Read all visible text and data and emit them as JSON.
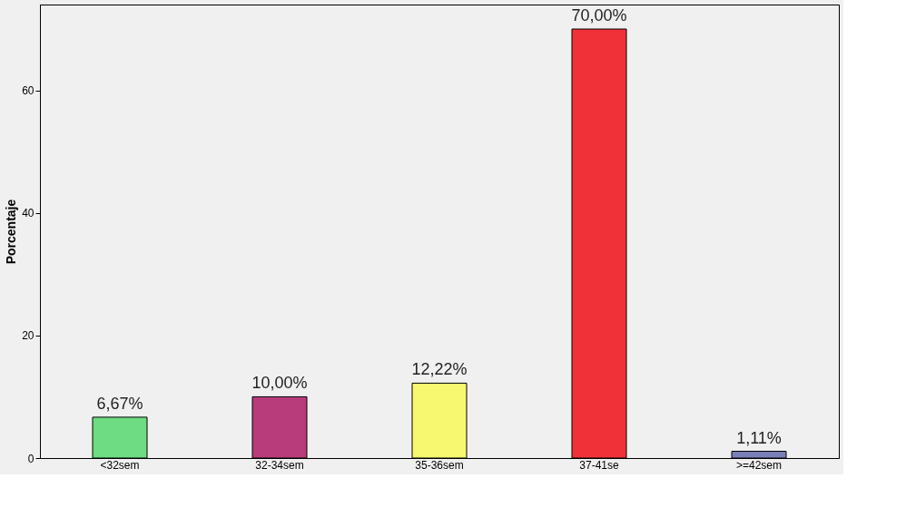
{
  "chart_data": {
    "type": "bar",
    "ylabel": "Porcentaje",
    "categories": [
      "<32sem",
      "32-34sem",
      "35-36sem",
      "37-41se",
      ">=42sem"
    ],
    "values": [
      6.67,
      10.0,
      12.22,
      70.0,
      1.11
    ],
    "colors": [
      "#6ddc82",
      "#b83c7c",
      "#f8f870",
      "#f03238",
      "#7b7fb8"
    ],
    "value_labels": [
      "6,67%",
      "10,00%",
      "12,22%",
      "70,00%",
      "1,11%"
    ],
    "ylim": [
      0,
      74
    ],
    "yticks": [
      0,
      20,
      40,
      60
    ],
    "grid": false
  }
}
